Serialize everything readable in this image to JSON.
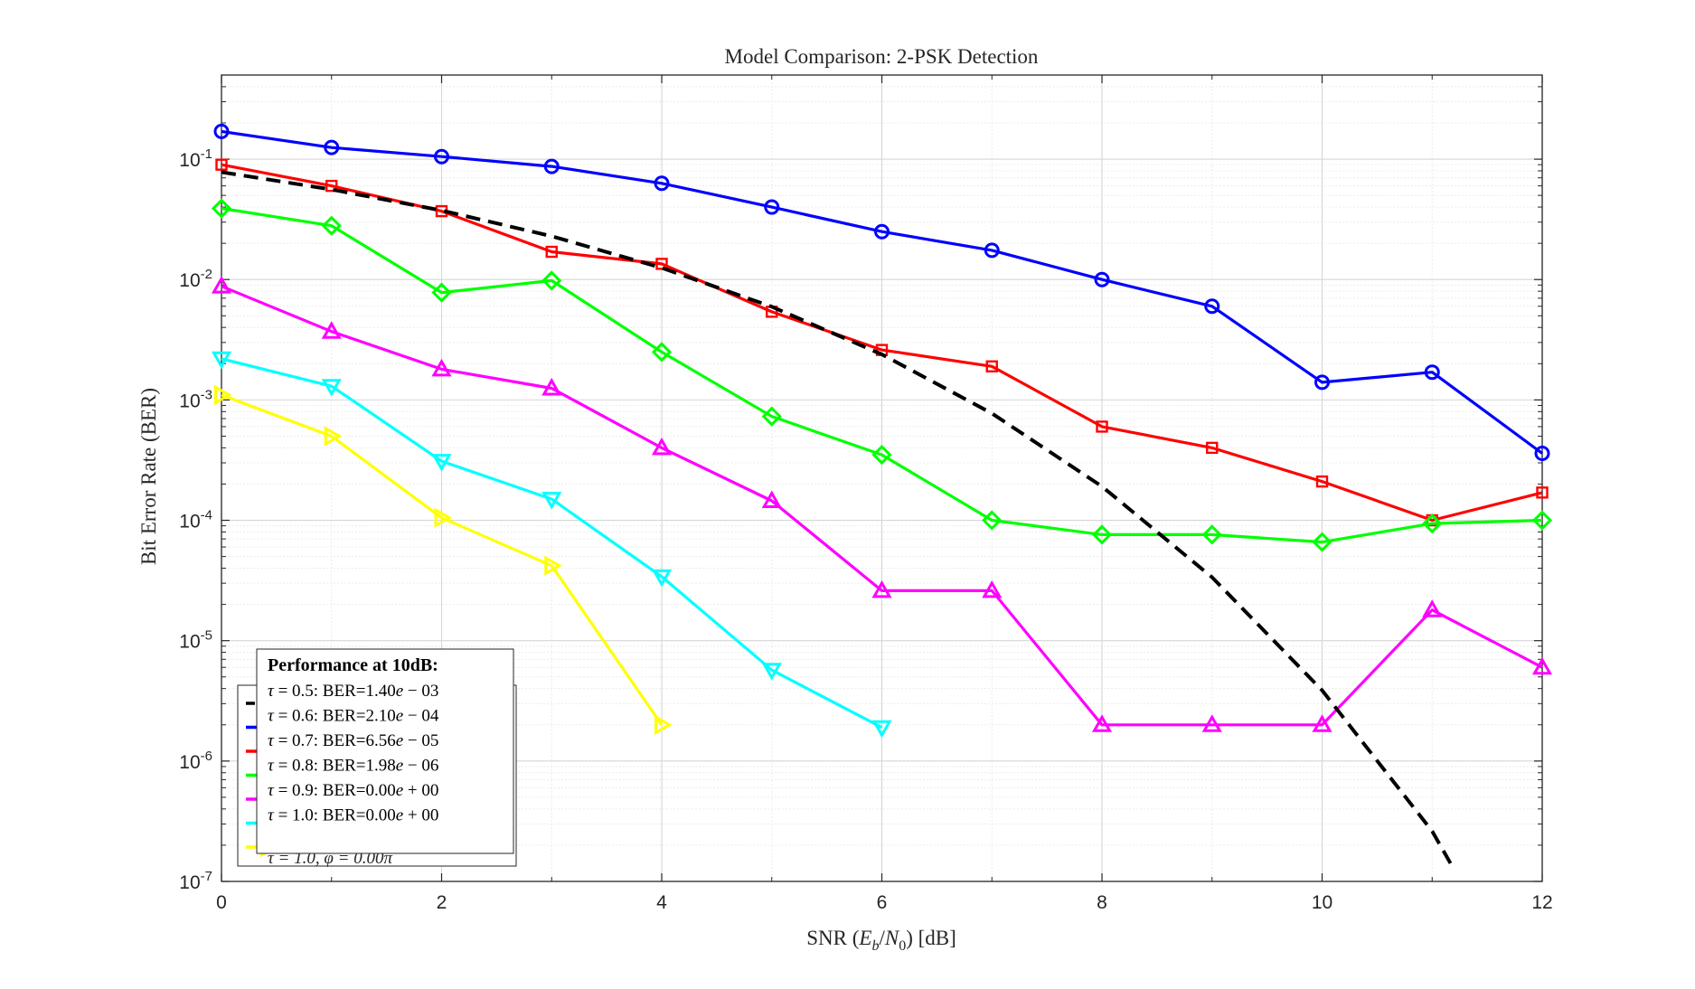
{
  "chart_data": {
    "type": "line",
    "title": "Model Comparison: 2-PSK Detection",
    "xlabel": "SNR (E_b/N_0) [dB]",
    "ylabel": "Bit Error Rate (BER)",
    "xlim": [
      0,
      12
    ],
    "ylim": [
      1e-07,
      0.5
    ],
    "yscale": "log",
    "grid": true,
    "x_ticks": [
      "0",
      "2",
      "4",
      "6",
      "8",
      "10",
      "12"
    ],
    "y_ticks": [
      {
        "base": "10",
        "exp": "-7"
      },
      {
        "base": "10",
        "exp": "-6"
      },
      {
        "base": "10",
        "exp": "-5"
      },
      {
        "base": "10",
        "exp": "-4"
      },
      {
        "base": "10",
        "exp": "-3"
      },
      {
        "base": "10",
        "exp": "-2"
      },
      {
        "base": "10",
        "exp": "-1"
      }
    ],
    "series": [
      {
        "color": "#000000",
        "dashed": true,
        "marker": "none",
        "x": [
          0,
          1,
          2,
          3,
          4,
          5,
          6,
          7,
          8,
          9,
          10,
          11,
          11.2
        ],
        "values": [
          0.078,
          0.056,
          0.0375,
          0.0229,
          0.0125,
          0.00595,
          0.00239,
          0.000773,
          0.000191,
          3.36e-05,
          3.87e-06,
          2.61e-07,
          1.25e-07
        ]
      },
      {
        "color": "#0000ff",
        "dashed": false,
        "marker": "circle",
        "x": [
          0,
          1,
          2,
          3,
          4,
          5,
          6,
          7,
          8,
          9,
          10,
          11,
          12
        ],
        "values": [
          0.17,
          0.125,
          0.105,
          0.087,
          0.063,
          0.04,
          0.025,
          0.0175,
          0.01,
          0.006,
          0.0014,
          0.0017,
          0.00036
        ]
      },
      {
        "color": "#ff0000",
        "dashed": false,
        "marker": "square",
        "x": [
          0,
          1,
          2,
          3,
          4,
          5,
          6,
          7,
          8,
          9,
          10,
          11,
          12
        ],
        "values": [
          0.09,
          0.06,
          0.037,
          0.017,
          0.0135,
          0.0054,
          0.0026,
          0.0019,
          0.0006,
          0.0004,
          0.00021,
          0.0001,
          0.00017
        ]
      },
      {
        "color": "#00ff00",
        "dashed": false,
        "marker": "diamond",
        "x": [
          0,
          1,
          2,
          3,
          4,
          5,
          6,
          7,
          8,
          9,
          10,
          11,
          12
        ],
        "values": [
          0.039,
          0.028,
          0.0078,
          0.0098,
          0.0025,
          0.00073,
          0.00035,
          0.0001,
          7.6e-05,
          7.6e-05,
          6.6e-05,
          9.4e-05,
          0.0001
        ]
      },
      {
        "color": "#ff00ff",
        "dashed": false,
        "marker": "triangle-up",
        "x": [
          0,
          1,
          2,
          3,
          4,
          5,
          6,
          7,
          8,
          9,
          10,
          11,
          12
        ],
        "values": [
          0.0088,
          0.0037,
          0.0018,
          0.00125,
          0.0004,
          0.000145,
          2.6e-05,
          2.6e-05,
          2e-06,
          2e-06,
          2e-06,
          1.8e-05,
          6e-06
        ]
      },
      {
        "color": "#00ffff",
        "dashed": false,
        "marker": "triangle-down",
        "x": [
          0,
          1,
          2,
          3,
          4,
          5,
          6
        ],
        "values": [
          0.0022,
          0.0013,
          0.00031,
          0.00015,
          3.4e-05,
          5.7e-06,
          1.9e-06
        ]
      },
      {
        "color": "#ffff00",
        "dashed": false,
        "marker": "triangle-right",
        "x": [
          0,
          1,
          2,
          3,
          4
        ],
        "values": [
          0.0011,
          0.0005,
          0.000105,
          4.2e-05,
          2e-06
        ]
      }
    ],
    "annotation": {
      "title": "Performance at 10dB:",
      "lines": [
        {
          "tau": "0.5",
          "ber": "1.40",
          "exp": "03",
          "sign": "−"
        },
        {
          "tau": "0.6",
          "ber": "2.10",
          "exp": "04",
          "sign": "−"
        },
        {
          "tau": "0.7",
          "ber": "6.56",
          "exp": "05",
          "sign": "−"
        },
        {
          "tau": "0.8",
          "ber": "1.98",
          "exp": "06",
          "sign": "−"
        },
        {
          "tau": "0.9",
          "ber": "0.00",
          "exp": "00",
          "sign": "+"
        },
        {
          "tau": "1.0",
          "ber": "0.00",
          "exp": "00",
          "sign": "+"
        }
      ],
      "legend_swatch_colors": [
        "#000000",
        "#0000ff",
        "#ff0000",
        "#00ff00",
        "#ff00ff",
        "#00ffff",
        "#ffff00"
      ],
      "legend_peek_text": "τ = 1.0, φ = 0.00π"
    }
  }
}
